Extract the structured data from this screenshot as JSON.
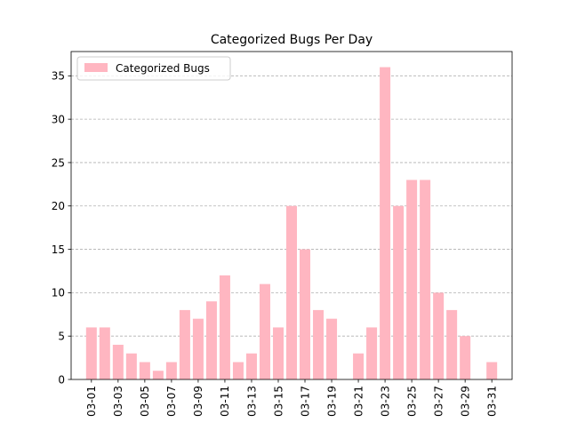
{
  "chart_data": {
    "type": "bar",
    "title": "Categorized Bugs Per Day",
    "xlabel": "",
    "ylabel": "",
    "categories": [
      "03-01",
      "03-02",
      "03-03",
      "03-04",
      "03-05",
      "03-06",
      "03-07",
      "03-08",
      "03-09",
      "03-10",
      "03-11",
      "03-12",
      "03-13",
      "03-14",
      "03-15",
      "03-16",
      "03-17",
      "03-18",
      "03-19",
      "03-20",
      "03-21",
      "03-22",
      "03-23",
      "03-24",
      "03-25",
      "03-26",
      "03-27",
      "03-28",
      "03-29",
      "03-30",
      "03-31"
    ],
    "series": [
      {
        "name": "Categorized Bugs",
        "values": [
          6,
          6,
          4,
          3,
          2,
          1,
          2,
          8,
          7,
          9,
          12,
          2,
          3,
          11,
          6,
          20,
          15,
          8,
          7,
          0,
          3,
          6,
          36,
          20,
          23,
          23,
          10,
          8,
          5,
          0,
          2
        ]
      }
    ],
    "x_tick_labels": [
      "03-01",
      "03-03",
      "03-05",
      "03-07",
      "03-09",
      "03-11",
      "03-13",
      "03-15",
      "03-17",
      "03-19",
      "03-21",
      "03-23",
      "03-25",
      "03-27",
      "03-29",
      "03-31"
    ],
    "y_ticks": [
      0,
      5,
      10,
      15,
      20,
      25,
      30,
      35
    ],
    "ylim": [
      0,
      37.8
    ],
    "grid": "y-dashed",
    "legend": "upper-left",
    "bar_color": "#ffb6c1",
    "grid_color": "#b0b0b0"
  }
}
